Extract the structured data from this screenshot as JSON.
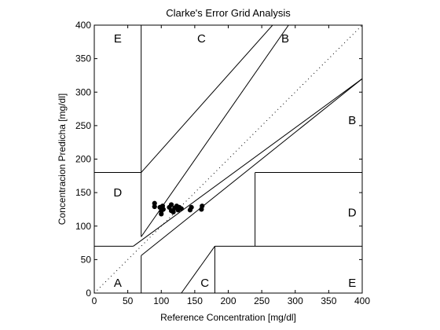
{
  "chart_data": {
    "type": "scatter",
    "title": "Clarke's Error Grid Analysis",
    "xlabel": "Reference Concentration [mg/dl]",
    "ylabel": "Concentracion Predicha [mg/dl]",
    "xlim": [
      0,
      400
    ],
    "ylim": [
      0,
      400
    ],
    "xticks": [
      0,
      50,
      100,
      150,
      200,
      250,
      300,
      350,
      400
    ],
    "yticks": [
      0,
      50,
      100,
      150,
      200,
      250,
      300,
      350,
      400
    ],
    "grid": false,
    "marker_color": "#000000",
    "zone_labels": [
      {
        "text": "E",
        "x": 35,
        "y": 380
      },
      {
        "text": "C",
        "x": 160,
        "y": 380
      },
      {
        "text": "B",
        "x": 285,
        "y": 380
      },
      {
        "text": "B",
        "x": 385,
        "y": 258
      },
      {
        "text": "D",
        "x": 35,
        "y": 150
      },
      {
        "text": "D",
        "x": 385,
        "y": 120
      },
      {
        "text": "A",
        "x": 35,
        "y": 15
      },
      {
        "text": "C",
        "x": 165,
        "y": 15
      },
      {
        "text": "E",
        "x": 385,
        "y": 15
      }
    ],
    "zone_boundaries": [
      {
        "x": [
          0,
          58.33
        ],
        "y": [
          70,
          70
        ]
      },
      {
        "x": [
          58.33,
          400
        ],
        "y": [
          70,
          320
        ]
      },
      {
        "x": [
          70,
          70
        ],
        "y": [
          84,
          400
        ]
      },
      {
        "x": [
          70,
          290
        ],
        "y": [
          84,
          400
        ]
      },
      {
        "x": [
          0,
          70
        ],
        "y": [
          180,
          180
        ]
      },
      {
        "x": [
          70,
          400
        ],
        "y": [
          180,
          550
        ]
      },
      {
        "x": [
          70,
          70
        ],
        "y": [
          0,
          56
        ]
      },
      {
        "x": [
          70,
          400
        ],
        "y": [
          56,
          320
        ]
      },
      {
        "x": [
          130,
          180
        ],
        "y": [
          0,
          70
        ]
      },
      {
        "x": [
          180,
          400
        ],
        "y": [
          70,
          70
        ]
      },
      {
        "x": [
          180,
          180
        ],
        "y": [
          0,
          70
        ]
      },
      {
        "x": [
          240,
          240
        ],
        "y": [
          70,
          180
        ]
      },
      {
        "x": [
          240,
          400
        ],
        "y": [
          180,
          180
        ]
      }
    ],
    "reference_line": {
      "x": [
        0,
        400
      ],
      "y": [
        0,
        400
      ]
    },
    "points": [
      {
        "x": 90,
        "y": 134
      },
      {
        "x": 90,
        "y": 129
      },
      {
        "x": 98,
        "y": 128
      },
      {
        "x": 100,
        "y": 122
      },
      {
        "x": 100,
        "y": 118
      },
      {
        "x": 102,
        "y": 130
      },
      {
        "x": 103,
        "y": 125
      },
      {
        "x": 112,
        "y": 128
      },
      {
        "x": 115,
        "y": 123
      },
      {
        "x": 115,
        "y": 132
      },
      {
        "x": 118,
        "y": 121
      },
      {
        "x": 120,
        "y": 127
      },
      {
        "x": 123,
        "y": 130
      },
      {
        "x": 125,
        "y": 124
      },
      {
        "x": 127,
        "y": 128
      },
      {
        "x": 130,
        "y": 126
      },
      {
        "x": 143,
        "y": 124
      },
      {
        "x": 145,
        "y": 128
      },
      {
        "x": 160,
        "y": 125
      },
      {
        "x": 161,
        "y": 130
      }
    ]
  }
}
